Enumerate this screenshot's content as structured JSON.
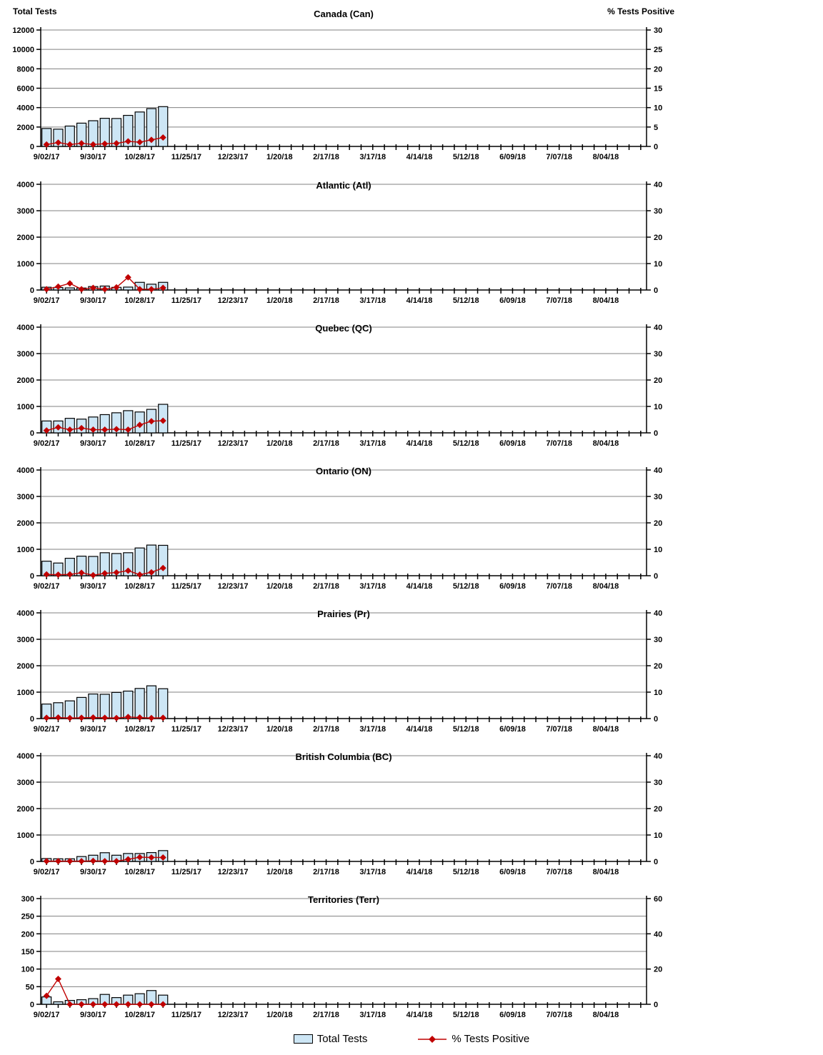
{
  "page": {
    "left_axis_header": "Total Tests",
    "right_axis_header": "% Tests Positive",
    "colors": {
      "bar_fill": "#CDE6F5",
      "bar_border": "#000000",
      "line": "#C00000",
      "grid": "#808080",
      "axis": "#000000",
      "text": "#000000"
    },
    "legend": [
      {
        "label": "Total Tests",
        "type": "bar"
      },
      {
        "label": "% Tests Positive",
        "type": "line"
      }
    ]
  },
  "x_axis": {
    "labels": [
      "9/02/17",
      "9/30/17",
      "10/28/17",
      "11/25/17",
      "12/23/17",
      "1/20/18",
      "2/17/18",
      "3/17/18",
      "4/14/18",
      "5/12/18",
      "6/09/18",
      "7/07/18",
      "8/04/18"
    ],
    "weeks_total": 52,
    "label_every_weeks": 4
  },
  "chart_data": [
    {
      "type": "bar+line",
      "title": "Canada (Can)",
      "ylabel_left": "Total Tests",
      "ylabel_right": "% Tests Positive",
      "left_max": 12000,
      "right_max": 30,
      "divisions": 6,
      "left_ticks": [
        0,
        2000,
        4000,
        6000,
        8000,
        10000,
        12000
      ],
      "right_ticks": [
        0,
        5,
        10,
        15,
        20,
        25,
        30
      ],
      "series": [
        {
          "name": "Total Tests",
          "axis": "left",
          "values": [
            1850,
            1780,
            2100,
            2400,
            2650,
            2900,
            2880,
            3200,
            3550,
            3900,
            4100
          ]
        },
        {
          "name": "% Tests Positive",
          "axis": "right",
          "values": [
            0.5,
            1.0,
            0.5,
            0.8,
            0.5,
            0.7,
            0.8,
            1.3,
            1.1,
            1.7,
            2.3
          ]
        }
      ]
    },
    {
      "type": "bar+line",
      "title": "Atlantic (Atl)",
      "left_max": 4000,
      "right_max": 40,
      "divisions": 4,
      "left_ticks": [
        0,
        1000,
        2000,
        3000,
        4000
      ],
      "right_ticks": [
        0,
        10,
        20,
        30,
        40
      ],
      "series": [
        {
          "name": "Total Tests",
          "axis": "left",
          "values": [
            105,
            95,
            80,
            75,
            130,
            150,
            100,
            110,
            290,
            220,
            290
          ]
        },
        {
          "name": "% Tests Positive",
          "axis": "right",
          "values": [
            0.3,
            1.3,
            2.5,
            0.3,
            0.8,
            0.3,
            1.0,
            4.8,
            0.3,
            0.3,
            0.8
          ]
        }
      ]
    },
    {
      "type": "bar+line",
      "title": "Quebec (QC)",
      "left_max": 4000,
      "right_max": 40,
      "divisions": 4,
      "left_ticks": [
        0,
        1000,
        2000,
        3000,
        4000
      ],
      "right_ticks": [
        0,
        10,
        20,
        30,
        40
      ],
      "series": [
        {
          "name": "Total Tests",
          "axis": "left",
          "values": [
            450,
            450,
            550,
            520,
            600,
            690,
            760,
            840,
            790,
            890,
            1080
          ]
        },
        {
          "name": "% Tests Positive",
          "axis": "right",
          "values": [
            0.9,
            2.1,
            1.2,
            1.8,
            1.2,
            1.2,
            1.4,
            1.2,
            3.0,
            4.4,
            4.6
          ]
        }
      ]
    },
    {
      "type": "bar+line",
      "title": "Ontario (ON)",
      "left_max": 4000,
      "right_max": 40,
      "divisions": 4,
      "left_ticks": [
        0,
        1000,
        2000,
        3000,
        4000
      ],
      "right_ticks": [
        0,
        10,
        20,
        30,
        40
      ],
      "series": [
        {
          "name": "Total Tests",
          "axis": "left",
          "values": [
            550,
            480,
            660,
            740,
            730,
            870,
            840,
            870,
            1050,
            1160,
            1150
          ]
        },
        {
          "name": "% Tests Positive",
          "axis": "right",
          "values": [
            0.5,
            0.4,
            0.5,
            1.1,
            0.2,
            0.9,
            1.2,
            1.9,
            0.4,
            1.3,
            2.9
          ]
        }
      ]
    },
    {
      "type": "bar+line",
      "title": "Prairies (Pr)",
      "left_max": 4000,
      "right_max": 40,
      "divisions": 4,
      "left_ticks": [
        0,
        1000,
        2000,
        3000,
        4000
      ],
      "right_ticks": [
        0,
        10,
        20,
        30,
        40
      ],
      "series": [
        {
          "name": "Total Tests",
          "axis": "left",
          "values": [
            550,
            600,
            670,
            800,
            930,
            920,
            990,
            1040,
            1140,
            1240,
            1130
          ]
        },
        {
          "name": "% Tests Positive",
          "axis": "right",
          "values": [
            0.3,
            0.4,
            0.2,
            0.3,
            0.4,
            0.3,
            0.2,
            0.6,
            0.4,
            0.2,
            0.3
          ]
        }
      ]
    },
    {
      "type": "bar+line",
      "title": "British Columbia (BC)",
      "left_max": 4000,
      "right_max": 40,
      "divisions": 4,
      "left_ticks": [
        0,
        1000,
        2000,
        3000,
        4000
      ],
      "right_ticks": [
        0,
        10,
        20,
        30,
        40
      ],
      "series": [
        {
          "name": "Total Tests",
          "axis": "left",
          "values": [
            110,
            100,
            100,
            185,
            235,
            330,
            235,
            300,
            300,
            335,
            410
          ]
        },
        {
          "name": "% Tests Positive",
          "axis": "right",
          "values": [
            0.1,
            0.1,
            0.1,
            0.1,
            0.2,
            0.1,
            0.1,
            0.8,
            1.6,
            1.5,
            1.5
          ]
        }
      ]
    },
    {
      "type": "bar+line",
      "title": "Territories (Terr)",
      "left_max": 300,
      "right_max": 60,
      "divisions": 6,
      "left_ticks": [
        0,
        50,
        100,
        150,
        200,
        250,
        300
      ],
      "right_ticks": [
        0,
        20,
        40,
        60
      ],
      "series": [
        {
          "name": "Total Tests",
          "axis": "left",
          "values": [
            21,
            7,
            11,
            13,
            16,
            28,
            19,
            26,
            30,
            39,
            26
          ]
        },
        {
          "name": "% Tests Positive",
          "axis": "right",
          "values": [
            4.8,
            14.4,
            0,
            0,
            0,
            0,
            0,
            0,
            0,
            0,
            0
          ]
        }
      ]
    }
  ]
}
